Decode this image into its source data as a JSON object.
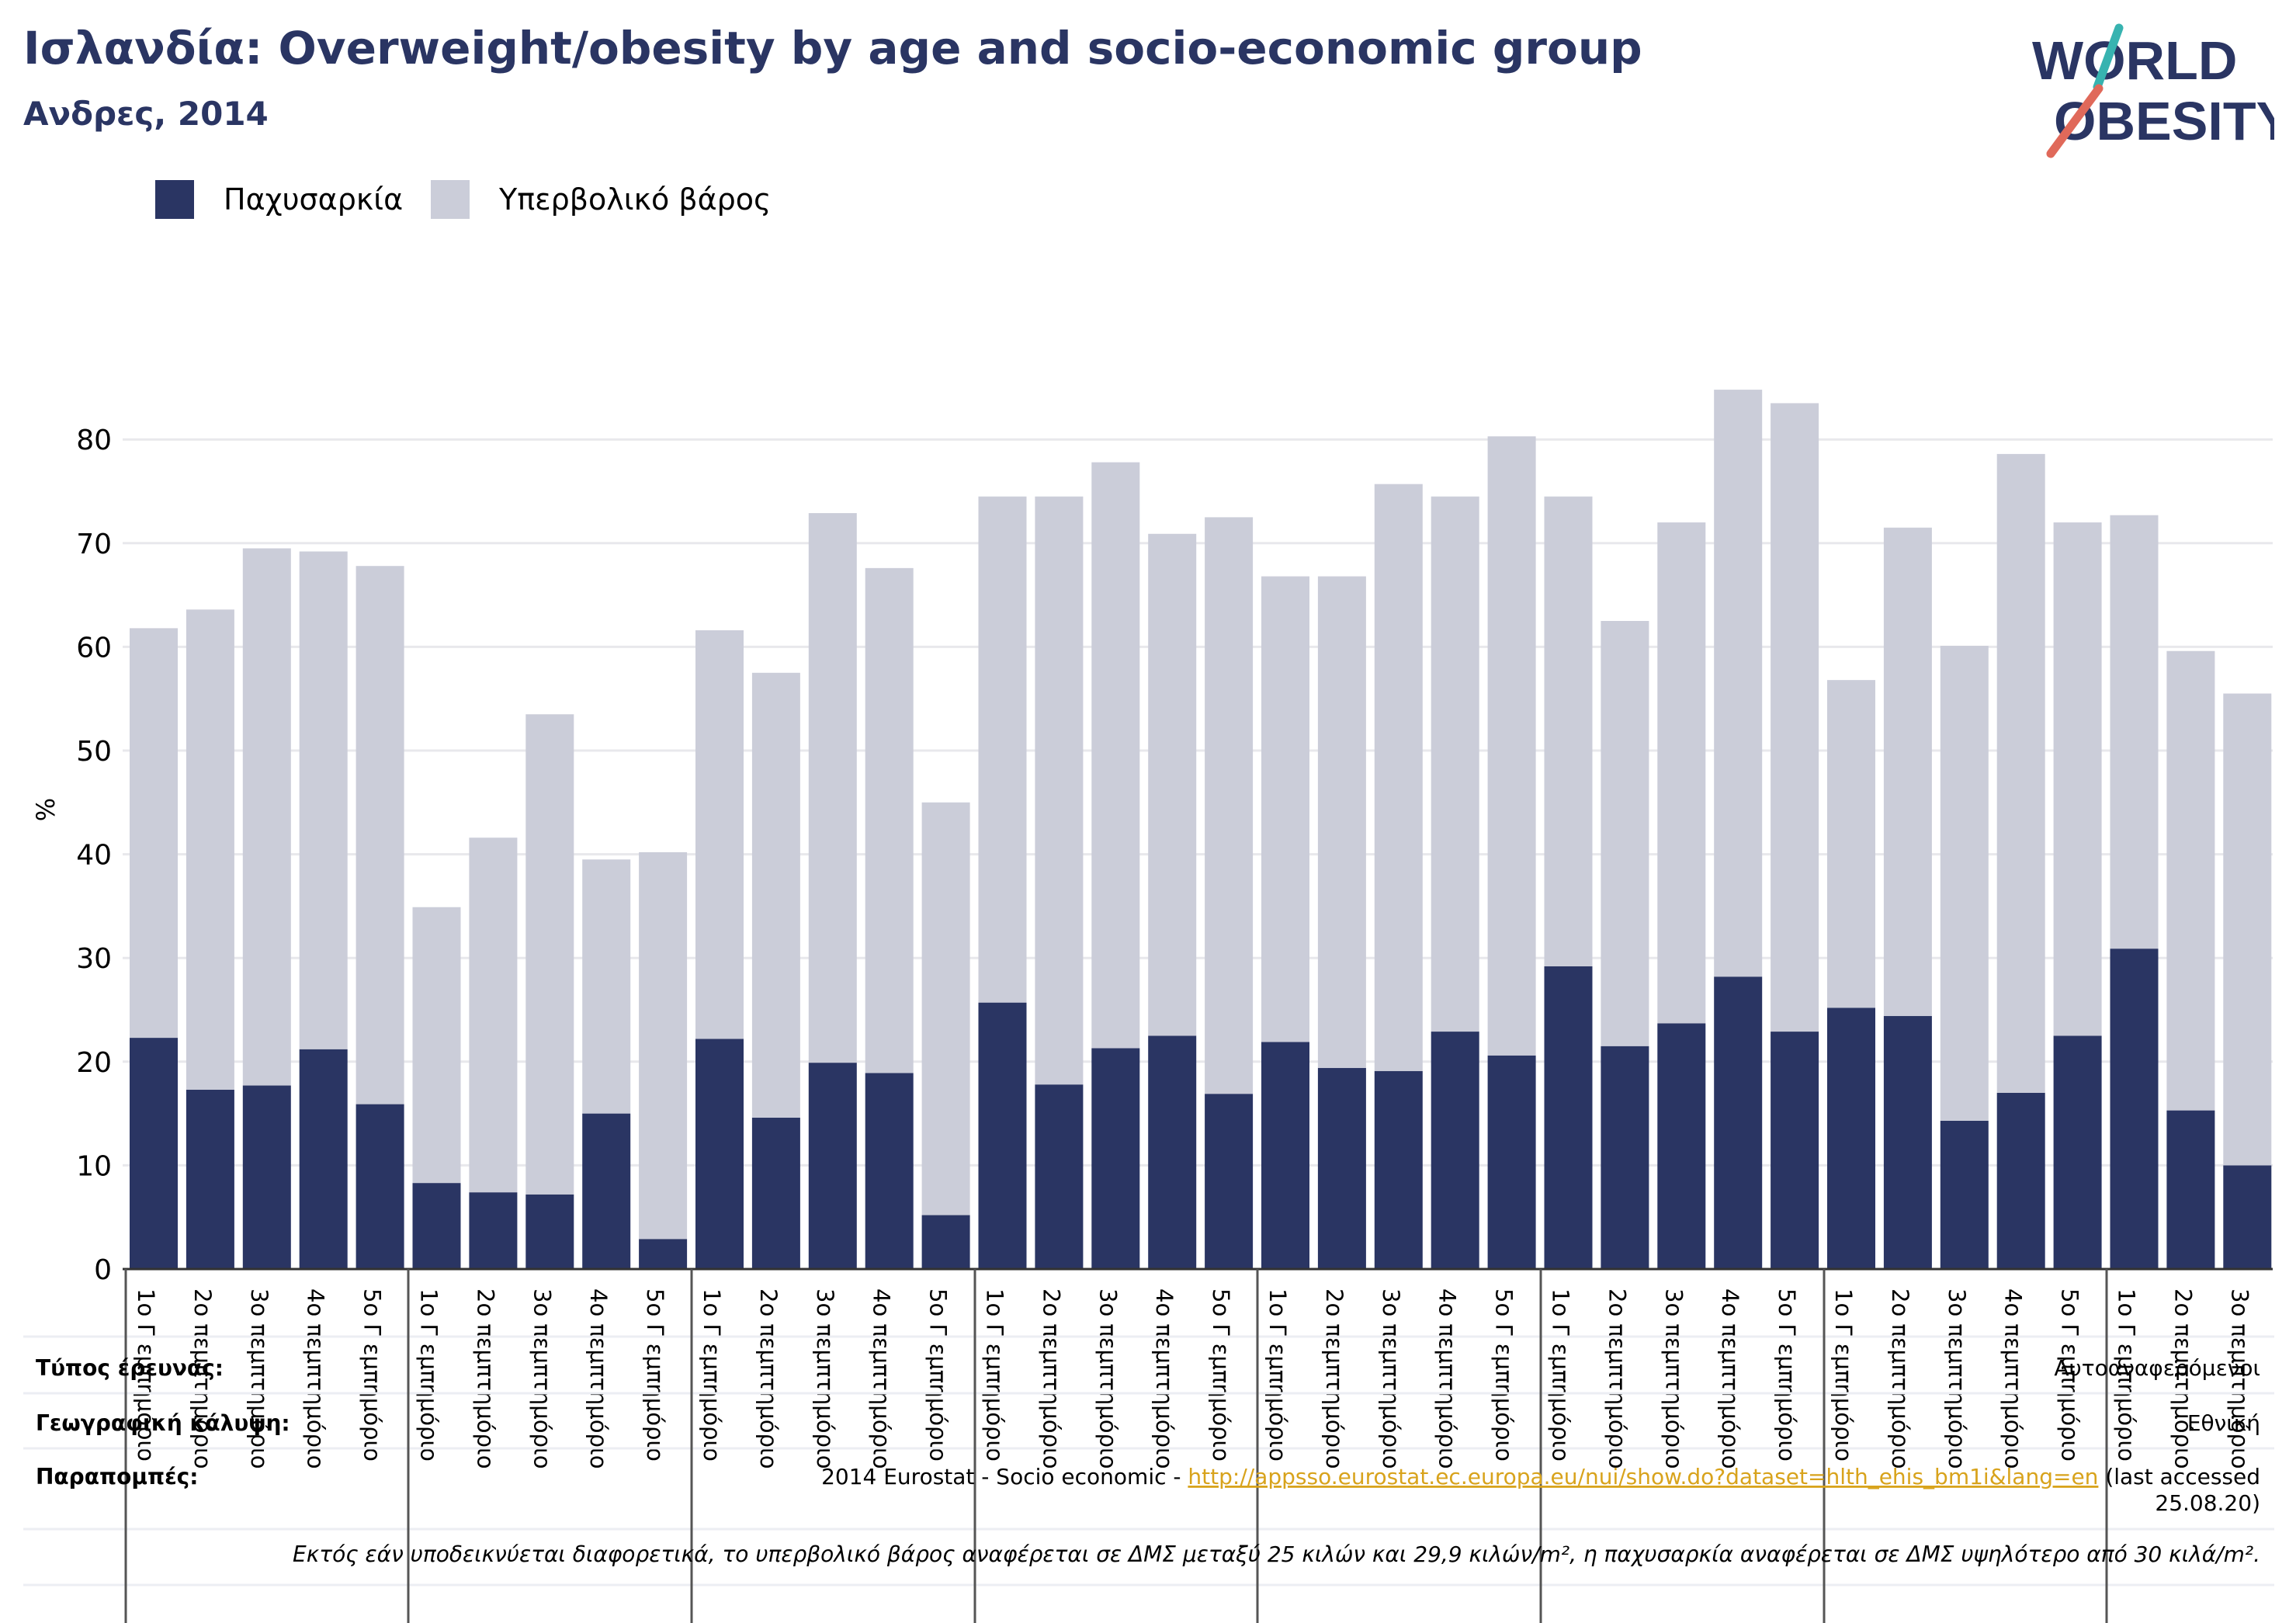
{
  "title": "Ισλανδία: Overweight/obesity by age and socio-economic group",
  "subtitle": "Ανδρες, 2014",
  "logo": {
    "line1": "WORLD",
    "line2": "OBESITY"
  },
  "colors": {
    "obesity": "#2a3563",
    "overweight": "#cbcdd9",
    "title": "#2a3563",
    "link": "#d8a31c",
    "logo_slash_teal": "#37b3b0",
    "logo_slash_red": "#e0695a"
  },
  "chart_data": {
    "type": "bar",
    "stacked": true,
    "ylabel": "%",
    "ylim": [
      0,
      85
    ],
    "yticks": [
      0,
      10,
      20,
      30,
      40,
      50,
      60,
      70,
      80
    ],
    "grid": true,
    "legend_position": "top-left",
    "categories": [
      "1ο Γ εμπημόριο",
      "2ο πεμπτημόριο",
      "3ο πεμπτημόριο",
      "4ο πεμπτημόριο",
      "5ο Γ εμπημόριο",
      "1ο Γ εμπημόριο",
      "2ο πεμπτημόριο",
      "3ο πεμπτημόριο",
      "4ο πεμπτημόριο",
      "5ο Γ εμπημόριο",
      "1ο Γ εμπημόριο",
      "2ο πεμπτημόριο",
      "3ο πεμπτημόριο",
      "4ο πεμπτημόριο",
      "5ο Γ εμπημόριο",
      "1ο Γ εμπημόριο",
      "2ο πεμπτημόριο",
      "3ο πεμπτημόριο",
      "4ο πεμπτημόριο",
      "5ο Γ εμπημόριο",
      "1ο Γ εμπημόριο",
      "2ο πεμπτημόριο",
      "3ο πεμπτημόριο",
      "4ο πεμπτημόριο",
      "5ο Γ εμπημόριο",
      "1ο Γ εμπημόριο",
      "2ο πεμπτημόριο",
      "3ο πεμπτημόριο",
      "4ο πεμπτημόριο",
      "5ο Γ εμπημόριο",
      "1ο Γ εμπημόριο",
      "2ο πεμπτημόριο",
      "3ο πεμπτημόριο",
      "4ο πεμπτημόριο",
      "5ο Γ εμπημόριο",
      "1ο Γ εμπημόριο",
      "2ο πεμπτημόριο",
      "3ο πεμπτημόριο"
    ],
    "series": [
      {
        "name": "Παχυσαρκία",
        "values": [
          22.3,
          17.3,
          17.7,
          21.2,
          15.9,
          8.3,
          7.4,
          7.2,
          15.0,
          2.9,
          22.2,
          14.6,
          19.9,
          18.9,
          5.2,
          25.7,
          17.8,
          21.3,
          22.5,
          16.9,
          21.9,
          19.4,
          19.1,
          22.9,
          20.6,
          29.2,
          21.5,
          23.7,
          28.2,
          22.9,
          25.2,
          24.4,
          14.3,
          17.0,
          22.5,
          30.9,
          15.3,
          10.0
        ]
      },
      {
        "name": "Υπερβολικό βάρος",
        "values": [
          39.5,
          46.3,
          51.8,
          48.0,
          51.9,
          26.6,
          34.2,
          46.3,
          24.5,
          37.3,
          39.4,
          42.9,
          53.0,
          48.7,
          39.8,
          48.8,
          56.7,
          56.5,
          48.4,
          55.6,
          44.9,
          47.4,
          56.6,
          51.6,
          59.7,
          45.3,
          41.0,
          48.3,
          56.6,
          60.6,
          31.6,
          47.1,
          45.8,
          61.6,
          49.5,
          41.8,
          44.3,
          45.5
        ]
      }
    ]
  },
  "footer": {
    "survey_type_label": "Τύπος έρευνας:",
    "survey_type_value": "Αυτοαναφερόμενοι",
    "coverage_label": "Γεωγραφική κάλυψη:",
    "coverage_value": "Εθνική",
    "references_label": "Παραπομπές:",
    "ref_prefix": "2014 Eurostat - Socio economic - ",
    "ref_link": "http://appsso.eurostat.ec.europa.eu/nui/show.do?dataset=hlth_ehis_bm1i&lang=en",
    "ref_suffix": " (last accessed",
    "ref_date": "25.08.20)",
    "note": "Εκτός εάν υποδεικνύεται διαφορετικά, το υπερβολικό βάρος αναφέρεται σε ΔΜΣ μεταξύ 25 κιλών και 29,9 κιλών/m², η παχυσαρκία αναφέρεται σε ΔΜΣ υψηλότερο από 30 κιλά/m²."
  }
}
